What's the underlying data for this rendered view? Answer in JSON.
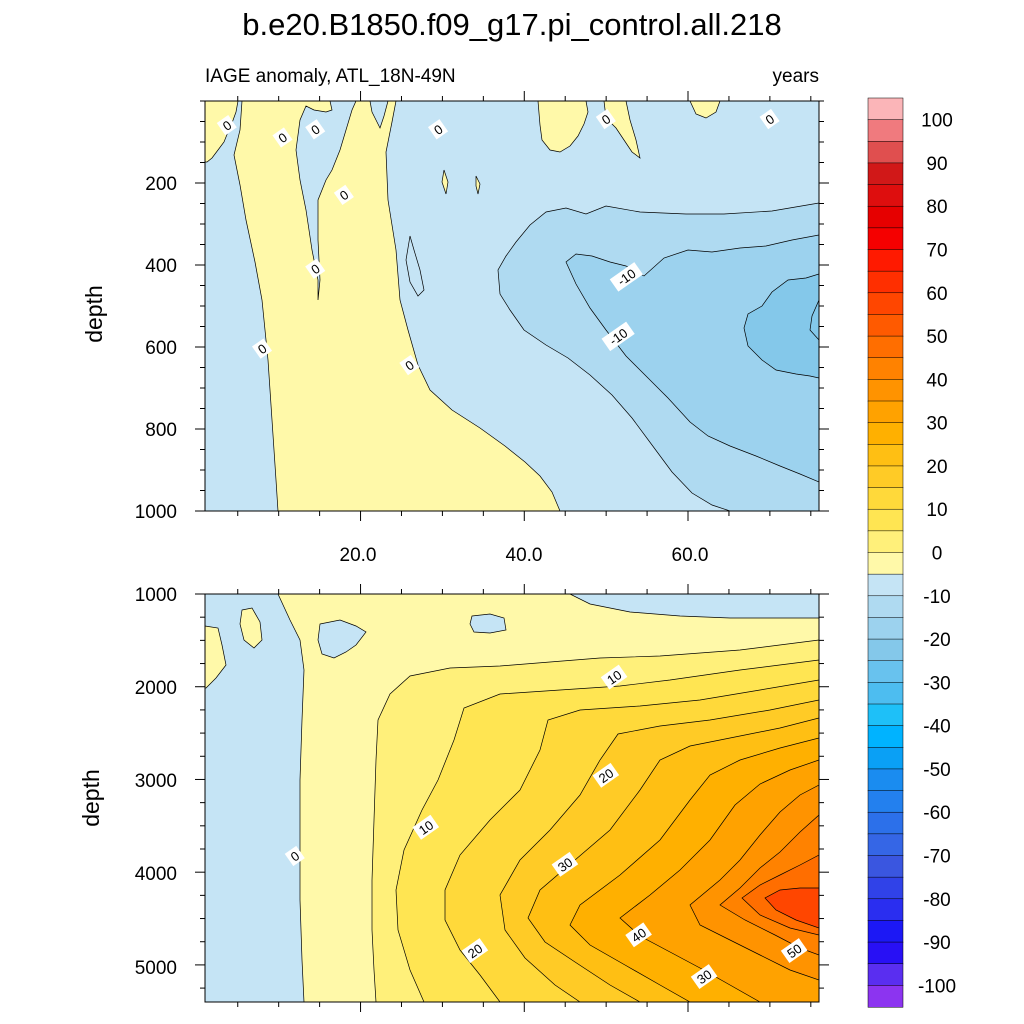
{
  "title": "b.e20.B1850.f09_g17.pi_control.all.218",
  "chart_data": [
    {
      "type": "contour",
      "panel": "upper ocean",
      "subtitle_left": "IAGE anomaly, ATL_18N-49N",
      "subtitle_right": "years",
      "xlabel": "",
      "ylabel": "depth",
      "xlim": [
        1,
        76
      ],
      "ylim": [
        1000,
        0
      ],
      "x_ticks": [
        "20.0",
        "40.0",
        "60.0"
      ],
      "y_ticks": [
        "200",
        "400",
        "600",
        "800",
        "1000"
      ],
      "contour_labels": [
        {
          "text": "0",
          "x": 3.7,
          "depth": 60
        },
        {
          "text": "0",
          "x": 10.5,
          "depth": 90
        },
        {
          "text": "0",
          "x": 14.5,
          "depth": 70
        },
        {
          "text": "0",
          "x": 29.5,
          "depth": 70
        },
        {
          "text": "0",
          "x": 50,
          "depth": 45
        },
        {
          "text": "0",
          "x": 70,
          "depth": 45
        },
        {
          "text": "0",
          "x": 18,
          "depth": 230
        },
        {
          "text": "0",
          "x": 14.5,
          "depth": 410
        },
        {
          "text": "0",
          "x": 8,
          "depth": 605
        },
        {
          "text": "0",
          "x": 26,
          "depth": 645
        },
        {
          "text": "-10",
          "x": 52.5,
          "depth": 430
        },
        {
          "text": "-10",
          "x": 51.5,
          "depth": 575
        }
      ]
    },
    {
      "type": "contour",
      "panel": "deep ocean",
      "xlabel": "",
      "ylabel": "depth",
      "xlim": [
        1,
        76
      ],
      "ylim": [
        5400,
        1000
      ],
      "y_ticks": [
        "1000",
        "2000",
        "3000",
        "4000",
        "5000"
      ],
      "contour_labels": [
        {
          "text": "10",
          "x": 51,
          "depth": 1900
        },
        {
          "text": "20",
          "x": 50,
          "depth": 2960
        },
        {
          "text": "10",
          "x": 28,
          "depth": 3520
        },
        {
          "text": "0",
          "x": 12,
          "depth": 3830
        },
        {
          "text": "30",
          "x": 45,
          "depth": 3920
        },
        {
          "text": "40",
          "x": 54,
          "depth": 4680
        },
        {
          "text": "20",
          "x": 34,
          "depth": 4850
        },
        {
          "text": "50",
          "x": 73,
          "depth": 4850
        },
        {
          "text": "30",
          "x": 62,
          "depth": 5130
        }
      ]
    }
  ],
  "colorbar": {
    "labels": [
      "100",
      "90",
      "80",
      "70",
      "60",
      "50",
      "40",
      "30",
      "20",
      "10",
      "0",
      "-10",
      "-20",
      "-30",
      "-40",
      "-50",
      "-60",
      "-70",
      "-80",
      "-90",
      "-100"
    ],
    "colors_top_to_bottom": [
      "#fbb5b8",
      "#f07a7e",
      "#e04f4f",
      "#d11818",
      "#de0e0e",
      "#e60000",
      "#f50000",
      "#ff1a00",
      "#ff2f00",
      "#ff4600",
      "#ff5a00",
      "#ff6e00",
      "#ff8200",
      "#ff9300",
      "#ffa200",
      "#ffb000",
      "#ffbf13",
      "#ffcb26",
      "#ffd93a",
      "#ffe552",
      "#fff07a",
      "#fff9a9",
      "#c5e4f5",
      "#afdaf1",
      "#9cd2ee",
      "#84c8ea",
      "#68c2ee",
      "#4dbdf0",
      "#1ec0f8",
      "#00b3ff",
      "#0aa0f5",
      "#1a8cf0",
      "#2380ee",
      "#2c70ea",
      "#3566e6",
      "#3a56e0",
      "#3042e8",
      "#2a2ef0",
      "#1c18f5",
      "#2810f5",
      "#5a2ef0",
      "#8c34f0"
    ]
  }
}
